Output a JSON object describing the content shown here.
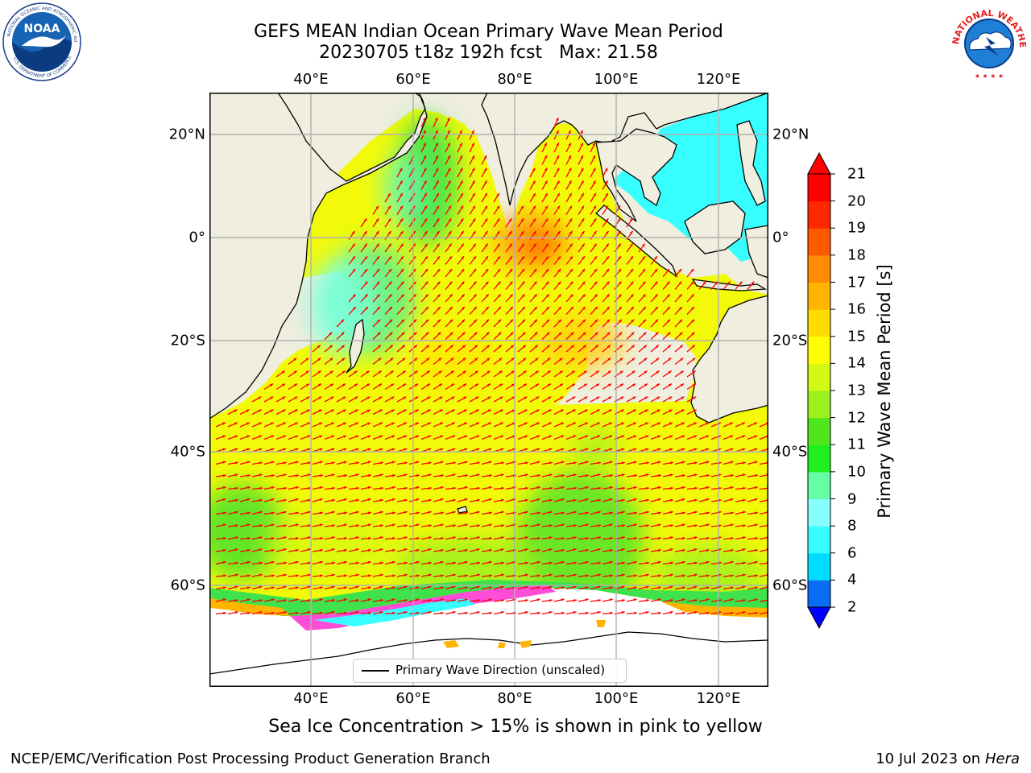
{
  "title_line1": "GEFS MEAN Indian Ocean Primary Wave Mean Period",
  "title_line2": "20230705 t18z 192h fcst   Max: 21.58",
  "logos": {
    "left": "NOAA",
    "right": "NATIONAL WEATHER SERVICE"
  },
  "axes": {
    "lon_labels": [
      "40°E",
      "60°E",
      "80°E",
      "100°E",
      "120°E"
    ],
    "lat_labels": [
      "20°N",
      "0°",
      "20°S",
      "40°S",
      "60°S"
    ]
  },
  "colorbar": {
    "label": "Primary Wave Mean Period [s]",
    "ticks": [
      "2",
      "4",
      "6",
      "8",
      "9",
      "10",
      "11",
      "12",
      "13",
      "14",
      "15",
      "16",
      "17",
      "18",
      "19",
      "20",
      "21"
    ],
    "colors": [
      "#0000ff",
      "#0a6cf5",
      "#00dcff",
      "#37ffff",
      "#87ffff",
      "#64ffa5",
      "#1ef01e",
      "#50e61e",
      "#9bf01e",
      "#d2fa14",
      "#ffff00",
      "#ffdc00",
      "#ffb400",
      "#ff8c00",
      "#ff5a00",
      "#ff2800",
      "#ff0000"
    ]
  },
  "legend": {
    "label": "Primary Wave Direction (unscaled)"
  },
  "map_colors": {
    "land": "#efeedf",
    "ice": "#ffffff",
    "arrow": "#ff0000",
    "grid": "#b0b0b0"
  },
  "subtitle": "Sea Ice Concentration > 15% is shown in pink to yellow",
  "footer_left": "NCEP/EMC/Verification Post Processing Product Generation Branch",
  "footer_right_prefix": "10 Jul 2023 on",
  "footer_right_host": "Hera"
}
